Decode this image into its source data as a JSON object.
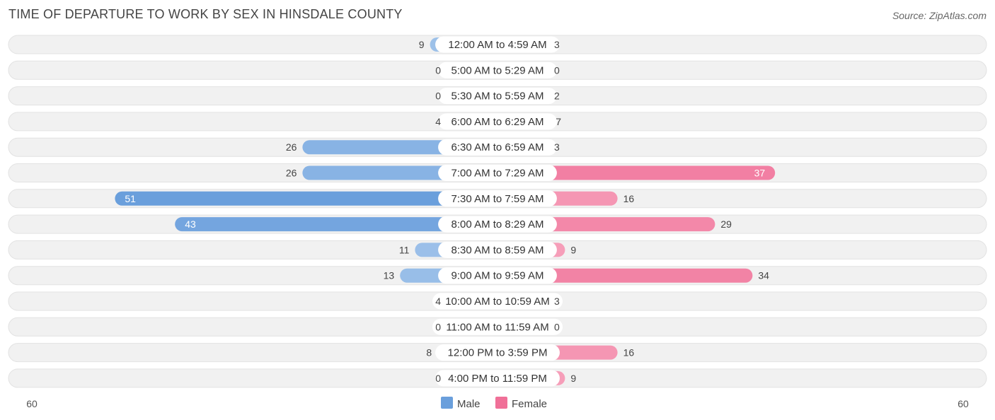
{
  "title": "TIME OF DEPARTURE TO WORK BY SEX IN HINSDALE COUNTY",
  "source": "Source: ZipAtlas.com",
  "colors": {
    "male_light": "#a8c8ec",
    "male_dark": "#6a9fdc",
    "female_light": "#f7a8c0",
    "female_dark": "#f07098",
    "row_bg": "#f1f1f1",
    "row_border": "#e2e2e2"
  },
  "chart_data": {
    "type": "bar",
    "orientation": "horizontal-diverging",
    "title": "TIME OF DEPARTURE TO WORK BY SEX IN HINSDALE COUNTY",
    "categories": [
      "12:00 AM to 4:59 AM",
      "5:00 AM to 5:29 AM",
      "5:30 AM to 5:59 AM",
      "6:00 AM to 6:29 AM",
      "6:30 AM to 6:59 AM",
      "7:00 AM to 7:29 AM",
      "7:30 AM to 7:59 AM",
      "8:00 AM to 8:29 AM",
      "8:30 AM to 8:59 AM",
      "9:00 AM to 9:59 AM",
      "10:00 AM to 10:59 AM",
      "11:00 AM to 11:59 AM",
      "12:00 PM to 3:59 PM",
      "4:00 PM to 11:59 PM"
    ],
    "series": [
      {
        "name": "Male",
        "values": [
          9,
          0,
          0,
          4,
          26,
          26,
          51,
          43,
          11,
          13,
          4,
          0,
          8,
          0
        ]
      },
      {
        "name": "Female",
        "values": [
          3,
          0,
          2,
          7,
          3,
          37,
          16,
          29,
          9,
          34,
          3,
          0,
          16,
          9
        ]
      }
    ],
    "axis_min_label": "60",
    "axis_max_label": "60",
    "xlim": [
      -60,
      60
    ],
    "legend": [
      "Male",
      "Female"
    ],
    "legend_position": "bottom-center"
  }
}
